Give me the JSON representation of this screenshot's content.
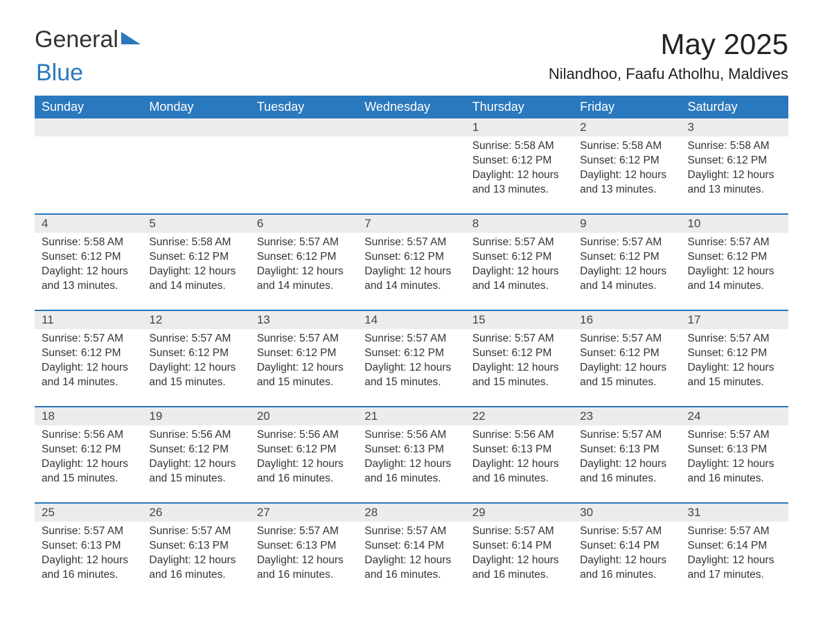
{
  "logo": {
    "text1": "General",
    "text2": "Blue"
  },
  "title": "May 2025",
  "location": "Nilandhoo, Faafu Atholhu, Maldives",
  "colors": {
    "header_bg": "#2a78bd",
    "header_text": "#ffffff",
    "daynum_bg": "#ececec",
    "row_divider": "#2a78bd",
    "page_bg": "#ffffff",
    "text": "#333333",
    "logo_blue": "#2a78bd"
  },
  "fonts": {
    "title_size_pt": 32,
    "location_size_pt": 17,
    "header_size_pt": 14,
    "body_size_pt": 12
  },
  "weekdays": [
    "Sunday",
    "Monday",
    "Tuesday",
    "Wednesday",
    "Thursday",
    "Friday",
    "Saturday"
  ],
  "weeks": [
    [
      null,
      null,
      null,
      null,
      {
        "n": "1",
        "sunrise": "Sunrise: 5:58 AM",
        "sunset": "Sunset: 6:12 PM",
        "daylight": "Daylight: 12 hours and 13 minutes."
      },
      {
        "n": "2",
        "sunrise": "Sunrise: 5:58 AM",
        "sunset": "Sunset: 6:12 PM",
        "daylight": "Daylight: 12 hours and 13 minutes."
      },
      {
        "n": "3",
        "sunrise": "Sunrise: 5:58 AM",
        "sunset": "Sunset: 6:12 PM",
        "daylight": "Daylight: 12 hours and 13 minutes."
      }
    ],
    [
      {
        "n": "4",
        "sunrise": "Sunrise: 5:58 AM",
        "sunset": "Sunset: 6:12 PM",
        "daylight": "Daylight: 12 hours and 13 minutes."
      },
      {
        "n": "5",
        "sunrise": "Sunrise: 5:58 AM",
        "sunset": "Sunset: 6:12 PM",
        "daylight": "Daylight: 12 hours and 14 minutes."
      },
      {
        "n": "6",
        "sunrise": "Sunrise: 5:57 AM",
        "sunset": "Sunset: 6:12 PM",
        "daylight": "Daylight: 12 hours and 14 minutes."
      },
      {
        "n": "7",
        "sunrise": "Sunrise: 5:57 AM",
        "sunset": "Sunset: 6:12 PM",
        "daylight": "Daylight: 12 hours and 14 minutes."
      },
      {
        "n": "8",
        "sunrise": "Sunrise: 5:57 AM",
        "sunset": "Sunset: 6:12 PM",
        "daylight": "Daylight: 12 hours and 14 minutes."
      },
      {
        "n": "9",
        "sunrise": "Sunrise: 5:57 AM",
        "sunset": "Sunset: 6:12 PM",
        "daylight": "Daylight: 12 hours and 14 minutes."
      },
      {
        "n": "10",
        "sunrise": "Sunrise: 5:57 AM",
        "sunset": "Sunset: 6:12 PM",
        "daylight": "Daylight: 12 hours and 14 minutes."
      }
    ],
    [
      {
        "n": "11",
        "sunrise": "Sunrise: 5:57 AM",
        "sunset": "Sunset: 6:12 PM",
        "daylight": "Daylight: 12 hours and 14 minutes."
      },
      {
        "n": "12",
        "sunrise": "Sunrise: 5:57 AM",
        "sunset": "Sunset: 6:12 PM",
        "daylight": "Daylight: 12 hours and 15 minutes."
      },
      {
        "n": "13",
        "sunrise": "Sunrise: 5:57 AM",
        "sunset": "Sunset: 6:12 PM",
        "daylight": "Daylight: 12 hours and 15 minutes."
      },
      {
        "n": "14",
        "sunrise": "Sunrise: 5:57 AM",
        "sunset": "Sunset: 6:12 PM",
        "daylight": "Daylight: 12 hours and 15 minutes."
      },
      {
        "n": "15",
        "sunrise": "Sunrise: 5:57 AM",
        "sunset": "Sunset: 6:12 PM",
        "daylight": "Daylight: 12 hours and 15 minutes."
      },
      {
        "n": "16",
        "sunrise": "Sunrise: 5:57 AM",
        "sunset": "Sunset: 6:12 PM",
        "daylight": "Daylight: 12 hours and 15 minutes."
      },
      {
        "n": "17",
        "sunrise": "Sunrise: 5:57 AM",
        "sunset": "Sunset: 6:12 PM",
        "daylight": "Daylight: 12 hours and 15 minutes."
      }
    ],
    [
      {
        "n": "18",
        "sunrise": "Sunrise: 5:56 AM",
        "sunset": "Sunset: 6:12 PM",
        "daylight": "Daylight: 12 hours and 15 minutes."
      },
      {
        "n": "19",
        "sunrise": "Sunrise: 5:56 AM",
        "sunset": "Sunset: 6:12 PM",
        "daylight": "Daylight: 12 hours and 15 minutes."
      },
      {
        "n": "20",
        "sunrise": "Sunrise: 5:56 AM",
        "sunset": "Sunset: 6:12 PM",
        "daylight": "Daylight: 12 hours and 16 minutes."
      },
      {
        "n": "21",
        "sunrise": "Sunrise: 5:56 AM",
        "sunset": "Sunset: 6:13 PM",
        "daylight": "Daylight: 12 hours and 16 minutes."
      },
      {
        "n": "22",
        "sunrise": "Sunrise: 5:56 AM",
        "sunset": "Sunset: 6:13 PM",
        "daylight": "Daylight: 12 hours and 16 minutes."
      },
      {
        "n": "23",
        "sunrise": "Sunrise: 5:57 AM",
        "sunset": "Sunset: 6:13 PM",
        "daylight": "Daylight: 12 hours and 16 minutes."
      },
      {
        "n": "24",
        "sunrise": "Sunrise: 5:57 AM",
        "sunset": "Sunset: 6:13 PM",
        "daylight": "Daylight: 12 hours and 16 minutes."
      }
    ],
    [
      {
        "n": "25",
        "sunrise": "Sunrise: 5:57 AM",
        "sunset": "Sunset: 6:13 PM",
        "daylight": "Daylight: 12 hours and 16 minutes."
      },
      {
        "n": "26",
        "sunrise": "Sunrise: 5:57 AM",
        "sunset": "Sunset: 6:13 PM",
        "daylight": "Daylight: 12 hours and 16 minutes."
      },
      {
        "n": "27",
        "sunrise": "Sunrise: 5:57 AM",
        "sunset": "Sunset: 6:13 PM",
        "daylight": "Daylight: 12 hours and 16 minutes."
      },
      {
        "n": "28",
        "sunrise": "Sunrise: 5:57 AM",
        "sunset": "Sunset: 6:14 PM",
        "daylight": "Daylight: 12 hours and 16 minutes."
      },
      {
        "n": "29",
        "sunrise": "Sunrise: 5:57 AM",
        "sunset": "Sunset: 6:14 PM",
        "daylight": "Daylight: 12 hours and 16 minutes."
      },
      {
        "n": "30",
        "sunrise": "Sunrise: 5:57 AM",
        "sunset": "Sunset: 6:14 PM",
        "daylight": "Daylight: 12 hours and 16 minutes."
      },
      {
        "n": "31",
        "sunrise": "Sunrise: 5:57 AM",
        "sunset": "Sunset: 6:14 PM",
        "daylight": "Daylight: 12 hours and 17 minutes."
      }
    ]
  ]
}
